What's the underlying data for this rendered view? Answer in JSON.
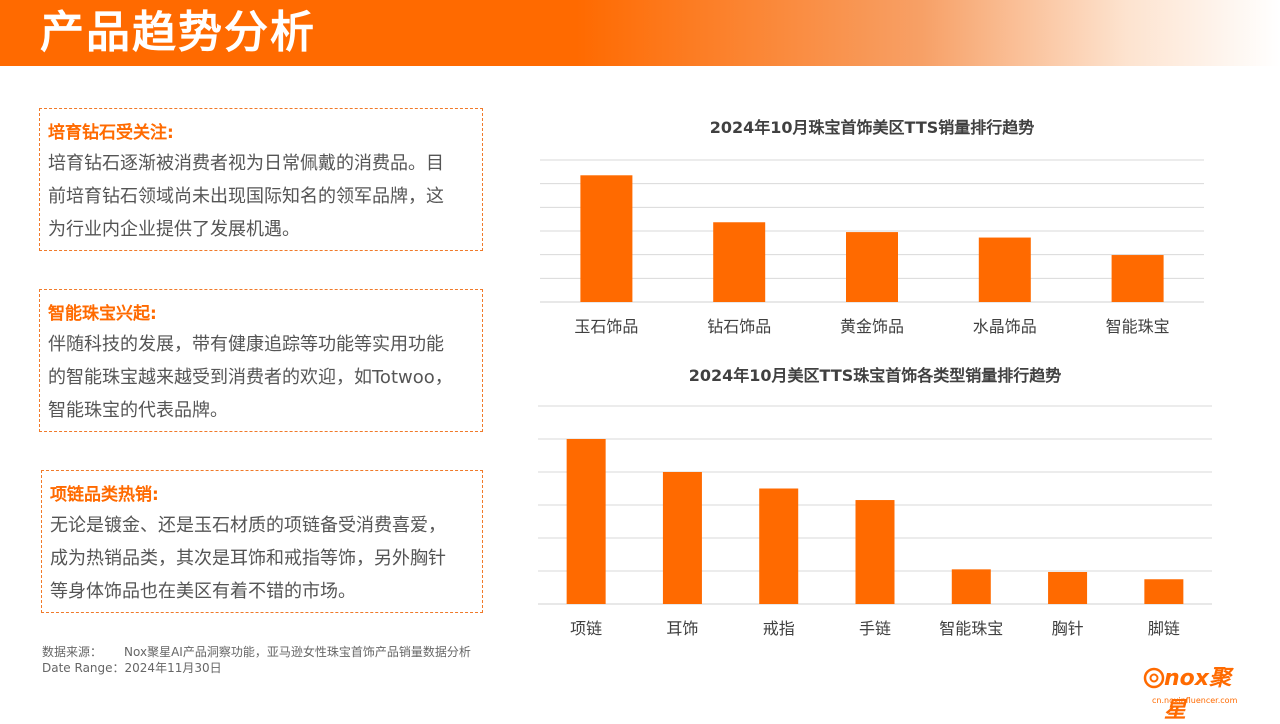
{
  "header": {
    "title": "产品趋势分析"
  },
  "cards": [
    {
      "heading": "培育钻石受关注:",
      "body": [
        "培育钻石逐渐被消费者视为日常佩戴的消费品。目",
        "前培育钻石领域尚未出现国际知名的领军品牌，这",
        "为行业内企业提供了发展机遇。"
      ]
    },
    {
      "heading": "智能珠宝兴起:",
      "body": [
        "伴随科技的发展，带有健康追踪等功能等实用功能",
        "的智能珠宝越来越受到消费者的欢迎，如Totwoo，",
        "智能珠宝的代表品牌。"
      ]
    },
    {
      "heading": "项链品类热销:",
      "body": [
        "无论是镀金、还是玉石材质的项链备受消费喜爱，",
        "成为热销品类，其次是耳饰和戒指等饰，另外胸针",
        "等身体饰品也在美区有着不错的市场。"
      ]
    }
  ],
  "footer": {
    "source_label": "数据来源：",
    "source_text": "Nox聚星AI产品洞察功能，亚马逊女性珠宝首饰产品销量数据分析",
    "date_label": "Date Range：",
    "date_text": "2024年11月30日"
  },
  "logo": {
    "text": "nox聚星",
    "url": "cn.noxinfluencer.com"
  },
  "colors": {
    "accent": "#ff6a00",
    "bar": "#ff6a00",
    "grid": "#d9d9d9"
  },
  "chart_data": [
    {
      "type": "bar",
      "title": "2024年10月珠宝首饰美区TTS销量排行趋势",
      "categories": [
        "玉石饰品",
        "钻石饰品",
        "黄金饰品",
        "水晶饰品",
        "智能珠宝"
      ],
      "values": [
        5.8,
        3.65,
        3.2,
        2.95,
        2.15
      ],
      "ylim": [
        0,
        6.5
      ],
      "grid": true,
      "gridlines": 6,
      "yaxis_labels_shown": false
    },
    {
      "type": "bar",
      "title": "2024年10月美区TTS珠宝首饰各类型销量排行趋势",
      "categories": [
        "项链",
        "耳饰",
        "戒指",
        "手链",
        "智能珠宝",
        "胸针",
        "脚链"
      ],
      "values": [
        5.0,
        4.0,
        3.5,
        3.15,
        1.05,
        0.97,
        0.75
      ],
      "ylim": [
        0,
        6
      ],
      "grid": true,
      "gridlines": 6,
      "yaxis_labels_shown": false
    }
  ]
}
